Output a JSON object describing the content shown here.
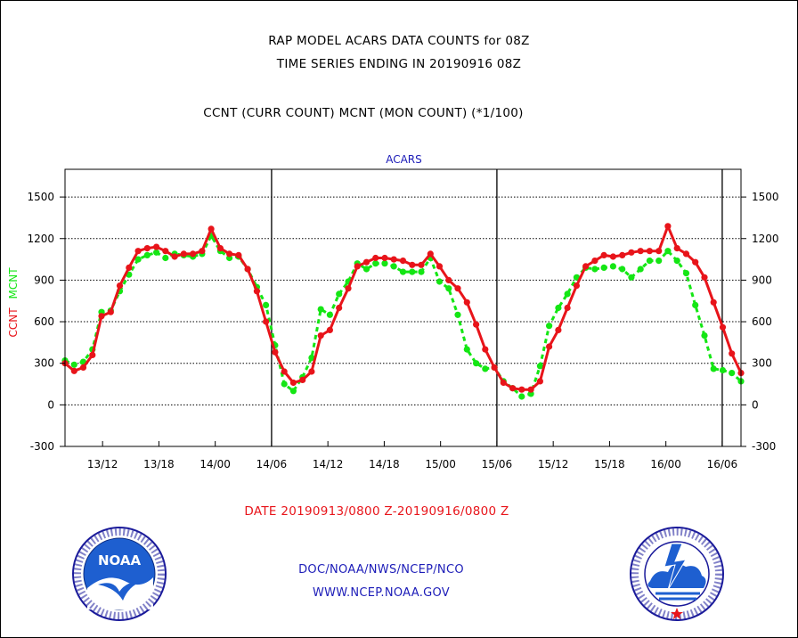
{
  "titles": {
    "line1": "RAP MODEL ACARS DATA COUNTS for 08Z",
    "line2": "TIME SERIES ENDING IN 20190916 08Z",
    "line3": "CCNT (CURR COUNT) MCNT (MON COUNT) (*1/100)"
  },
  "date_range": "DATE 20190913/0800 Z-20190916/0800 Z",
  "credits": {
    "line1": "DOC/NOAA/NWS/NCEP/NCO",
    "line2": "WWW.NCEP.NOAA.GOV"
  },
  "logos": {
    "noaa": "noaa-logo",
    "nws": "nws-logo",
    "noaa_text": "NOAA"
  },
  "chart_data": {
    "type": "line",
    "title": "ACARS",
    "ylabel_series": [
      "CCNT",
      "MCNT"
    ],
    "ylim": [
      -300,
      1700
    ],
    "yticks": [
      -300,
      0,
      300,
      600,
      900,
      1200,
      1500
    ],
    "xticks": [
      "13/12",
      "13/18",
      "14/00",
      "14/06",
      "14/12",
      "14/18",
      "15/00",
      "15/06",
      "15/12",
      "15/18",
      "16/00",
      "16/06"
    ],
    "grid": "horizontal-dotted",
    "x_start": "20190913/0800",
    "x_end": "20190916/0800",
    "colors": {
      "CCNT": "#e8141a",
      "MCNT": "#14e614",
      "axis": "#000000",
      "title": "#1c1cb8"
    },
    "series": [
      {
        "name": "CCNT",
        "values": [
          300,
          245,
          270,
          360,
          640,
          670,
          860,
          990,
          1110,
          1130,
          1140,
          1110,
          1070,
          1090,
          1090,
          1110,
          1270,
          1130,
          1090,
          1080,
          980,
          820,
          600,
          380,
          240,
          160,
          180,
          240,
          500,
          540,
          700,
          840,
          1000,
          1030,
          1060,
          1060,
          1050,
          1040,
          1010,
          1010,
          1090,
          1000,
          900,
          840,
          740,
          580,
          400,
          270,
          160,
          120,
          110,
          110,
          170,
          420,
          540,
          700,
          860,
          1000,
          1040,
          1080,
          1070,
          1080,
          1100,
          1110,
          1110,
          1110,
          1290,
          1130,
          1090,
          1030,
          920,
          740,
          560,
          370,
          230
        ]
      },
      {
        "name": "MCNT",
        "values": [
          320,
          290,
          310,
          400,
          670,
          680,
          820,
          940,
          1050,
          1080,
          1100,
          1060,
          1090,
          1080,
          1070,
          1090,
          1220,
          1110,
          1060,
          1070,
          980,
          850,
          720,
          430,
          150,
          100,
          200,
          340,
          690,
          650,
          800,
          890,
          1020,
          980,
          1020,
          1020,
          1000,
          960,
          960,
          960,
          1060,
          890,
          840,
          650,
          400,
          300,
          260,
          270,
          170,
          120,
          60,
          80,
          280,
          570,
          700,
          800,
          920,
          990,
          980,
          990,
          1000,
          980,
          920,
          980,
          1040,
          1040,
          1110,
          1040,
          950,
          720,
          500,
          260,
          250,
          230,
          170
        ]
      }
    ]
  }
}
